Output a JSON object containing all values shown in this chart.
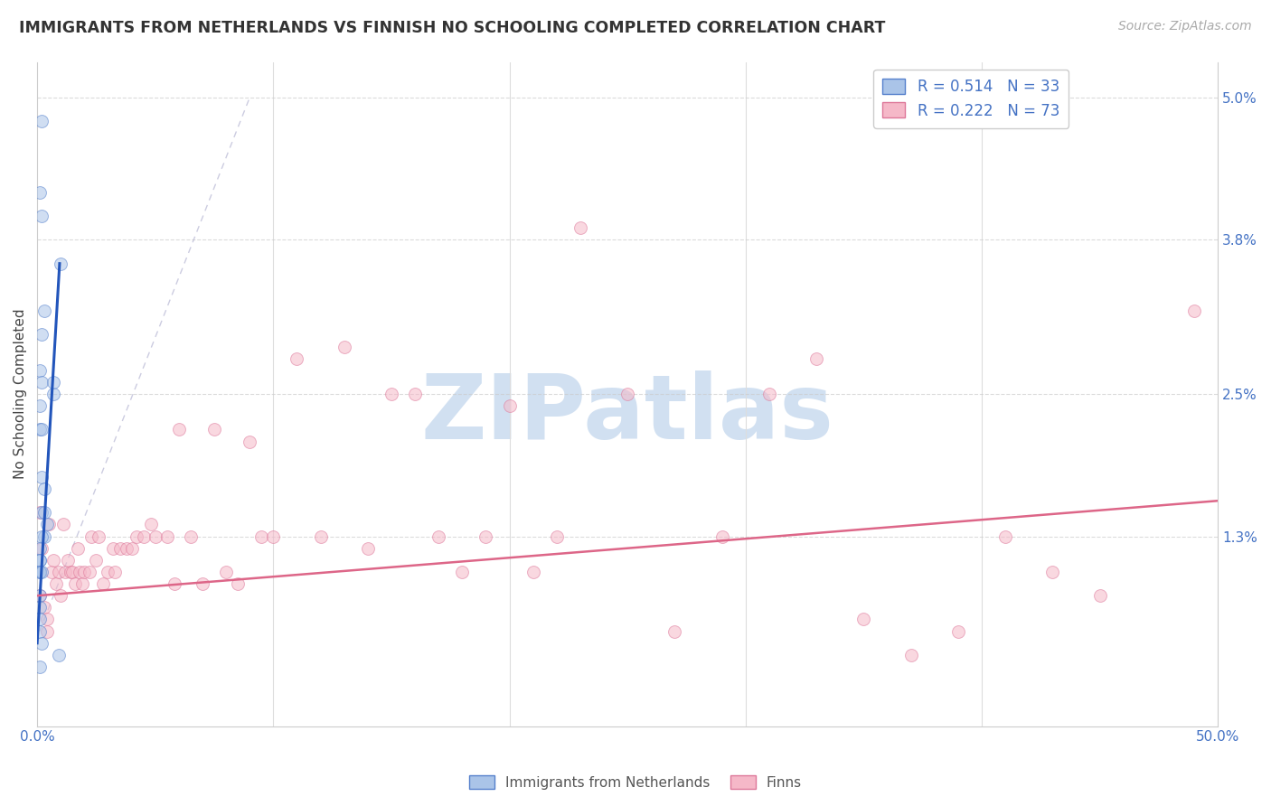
{
  "title": "IMMIGRANTS FROM NETHERLANDS VS FINNISH NO SCHOOLING COMPLETED CORRELATION CHART",
  "source": "Source: ZipAtlas.com",
  "ylabel": "No Schooling Completed",
  "xlim": [
    0.0,
    0.5
  ],
  "ylim": [
    -0.003,
    0.053
  ],
  "ytick_vals": [
    0.013,
    0.025,
    0.038,
    0.05
  ],
  "ytick_labels": [
    "1.3%",
    "2.5%",
    "3.8%",
    "5.0%"
  ],
  "blue_scatter_x": [
    0.001,
    0.002,
    0.001,
    0.002,
    0.003,
    0.002,
    0.001,
    0.002,
    0.001,
    0.001,
    0.002,
    0.003,
    0.002,
    0.003,
    0.004,
    0.003,
    0.002,
    0.001,
    0.001,
    0.001,
    0.001,
    0.001,
    0.002,
    0.001,
    0.001,
    0.001,
    0.002,
    0.007,
    0.007,
    0.01,
    0.009,
    0.001,
    0.002
  ],
  "blue_scatter_y": [
    0.005,
    0.048,
    0.042,
    0.04,
    0.032,
    0.03,
    0.027,
    0.026,
    0.024,
    0.022,
    0.018,
    0.017,
    0.015,
    0.015,
    0.014,
    0.013,
    0.013,
    0.012,
    0.011,
    0.011,
    0.01,
    0.01,
    0.01,
    0.008,
    0.007,
    0.006,
    0.004,
    0.025,
    0.026,
    0.036,
    0.003,
    0.002,
    0.022
  ],
  "pink_scatter_x": [
    0.001,
    0.002,
    0.001,
    0.003,
    0.004,
    0.004,
    0.005,
    0.006,
    0.007,
    0.008,
    0.009,
    0.01,
    0.011,
    0.012,
    0.013,
    0.014,
    0.015,
    0.016,
    0.017,
    0.018,
    0.019,
    0.02,
    0.022,
    0.023,
    0.025,
    0.026,
    0.028,
    0.03,
    0.032,
    0.033,
    0.035,
    0.038,
    0.04,
    0.042,
    0.045,
    0.048,
    0.05,
    0.055,
    0.058,
    0.06,
    0.065,
    0.07,
    0.075,
    0.08,
    0.085,
    0.09,
    0.095,
    0.1,
    0.11,
    0.12,
    0.13,
    0.14,
    0.15,
    0.16,
    0.17,
    0.18,
    0.19,
    0.2,
    0.21,
    0.22,
    0.23,
    0.25,
    0.27,
    0.29,
    0.31,
    0.33,
    0.35,
    0.37,
    0.39,
    0.41,
    0.43,
    0.45,
    0.49
  ],
  "pink_scatter_y": [
    0.015,
    0.012,
    0.008,
    0.007,
    0.006,
    0.005,
    0.014,
    0.01,
    0.011,
    0.009,
    0.01,
    0.008,
    0.014,
    0.01,
    0.011,
    0.01,
    0.01,
    0.009,
    0.012,
    0.01,
    0.009,
    0.01,
    0.01,
    0.013,
    0.011,
    0.013,
    0.009,
    0.01,
    0.012,
    0.01,
    0.012,
    0.012,
    0.012,
    0.013,
    0.013,
    0.014,
    0.013,
    0.013,
    0.009,
    0.022,
    0.013,
    0.009,
    0.022,
    0.01,
    0.009,
    0.021,
    0.013,
    0.013,
    0.028,
    0.013,
    0.029,
    0.012,
    0.025,
    0.025,
    0.013,
    0.01,
    0.013,
    0.024,
    0.01,
    0.013,
    0.039,
    0.025,
    0.005,
    0.013,
    0.025,
    0.028,
    0.006,
    0.003,
    0.005,
    0.013,
    0.01,
    0.008,
    0.032
  ],
  "blue_line_x": [
    0.0,
    0.0095
  ],
  "blue_line_y": [
    0.004,
    0.036
  ],
  "pink_line_x": [
    0.0,
    0.5
  ],
  "pink_line_y": [
    0.008,
    0.016
  ],
  "blue_line_color": "#2255bb",
  "pink_line_color": "#dd6688",
  "dashed_line_x": [
    0.001,
    0.09
  ],
  "dashed_line_y": [
    0.005,
    0.05
  ],
  "scatter_marker": "o",
  "scatter_size": 100,
  "scatter_alpha": 0.55,
  "blue_face_color": "#aac4e8",
  "blue_edge_color": "#5580cc",
  "pink_face_color": "#f5b8c8",
  "pink_edge_color": "#dd7799",
  "grid_color": "#cccccc",
  "background_color": "#ffffff",
  "title_fontsize": 12.5,
  "ylabel_fontsize": 11,
  "tick_fontsize": 11,
  "source_fontsize": 10,
  "legend_fontsize": 12,
  "watermark_text": "ZIPatlas",
  "watermark_color": "#ccddf0",
  "watermark_fontsize": 72,
  "watermark_alpha": 0.9
}
